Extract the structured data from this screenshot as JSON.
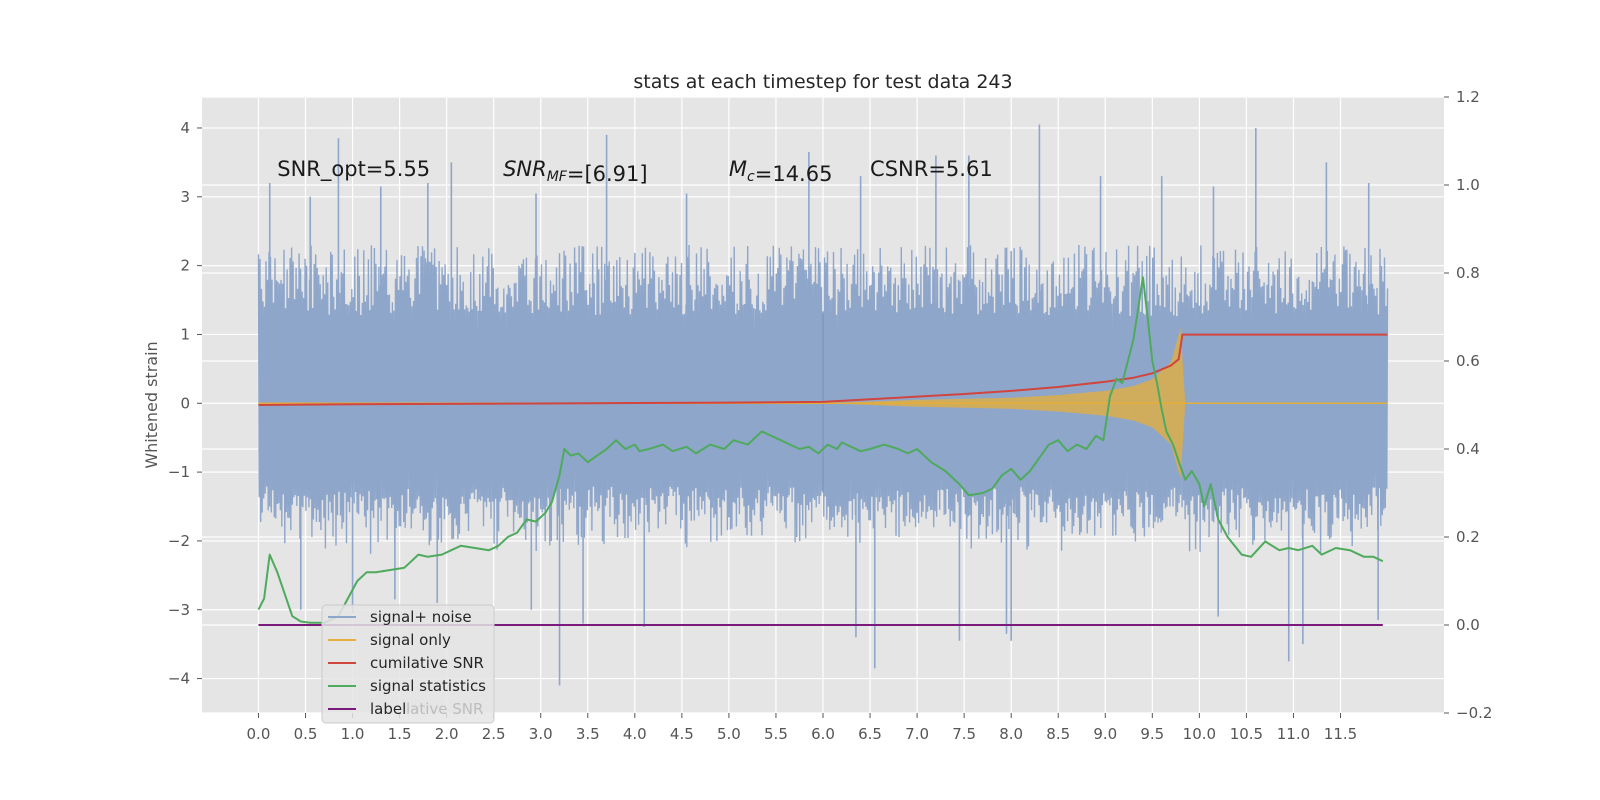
{
  "chart_data": {
    "type": "line",
    "title": "stats at each timestep for test data 243",
    "xlabel": "",
    "ylabel": "Whitened strain",
    "xlim": [
      -0.6,
      12.6
    ],
    "ylim": [
      -4.5,
      4.45
    ],
    "y2lim": [
      -0.2,
      1.2
    ],
    "x_ticks": [
      0.0,
      0.5,
      1.0,
      1.5,
      2.0,
      2.5,
      3.0,
      3.5,
      4.0,
      4.5,
      5.0,
      5.5,
      6.0,
      6.5,
      7.0,
      7.5,
      8.0,
      8.5,
      9.0,
      9.5,
      10.0,
      10.5,
      11.0,
      11.5
    ],
    "x_tick_labels": [
      "0.0",
      "0.5",
      "1.0",
      "1.5",
      "2.0",
      "2.5",
      "3.0",
      "3.5",
      "4.0",
      "4.5",
      "5.0",
      "5.5",
      "6.0",
      "6.5",
      "7.0",
      "7.5",
      "8.0",
      "8.5",
      "9.0",
      "9.5",
      "10.0",
      "10.5",
      "11.0",
      "11.5"
    ],
    "y_ticks": [
      -4,
      -3,
      -2,
      -1,
      0,
      1,
      2,
      3,
      4
    ],
    "y_tick_labels": [
      "−4",
      "−3",
      "−2",
      "−1",
      "0",
      "1",
      "2",
      "3",
      "4"
    ],
    "y2_ticks": [
      -0.2,
      0.0,
      0.2,
      0.4,
      0.6,
      0.8,
      1.0,
      1.2
    ],
    "y2_tick_labels": [
      "−0.2",
      "0.0",
      "0.2",
      "0.4",
      "0.6",
      "0.8",
      "1.0",
      "1.2"
    ],
    "grid": true,
    "legend_placement": "lower-left",
    "annotations": [
      {
        "parts": [
          {
            "t": "SNR_opt=5.55",
            "italic": false
          }
        ],
        "x": 0.2,
        "y": 3.3
      },
      {
        "parts": [
          {
            "t": "SNR",
            "italic": true
          },
          {
            "t": "MF",
            "italic": true,
            "sub": true
          },
          {
            "t": "=[6.91]",
            "italic": false
          }
        ],
        "x": 2.6,
        "y": 3.3
      },
      {
        "parts": [
          {
            "t": "M",
            "italic": true
          },
          {
            "t": "c",
            "italic": true,
            "sub": true
          },
          {
            "t": "=14.65",
            "italic": false
          }
        ],
        "x": 5.0,
        "y": 3.3
      },
      {
        "parts": [
          {
            "t": "CSNR=5.61",
            "italic": false
          }
        ],
        "x": 6.5,
        "y": 3.3
      }
    ],
    "series": [
      {
        "name": "signal+ noise",
        "axis": "left",
        "color": "#8fa6cb",
        "kind": "noise",
        "x_range": [
          0.0,
          12.0
        ],
        "typical_range": [
          -2.2,
          2.3
        ],
        "spikes": [
          [
            0.12,
            3.2
          ],
          [
            0.55,
            3.0
          ],
          [
            0.85,
            3.85
          ],
          [
            1.3,
            3.15
          ],
          [
            1.8,
            3.2
          ],
          [
            2.05,
            3.5
          ],
          [
            2.95,
            3.05
          ],
          [
            3.7,
            3.9
          ],
          [
            4.55,
            3.05
          ],
          [
            5.85,
            3.65
          ],
          [
            6.4,
            3.3
          ],
          [
            7.2,
            3.6
          ],
          [
            7.55,
            3.6
          ],
          [
            8.3,
            4.05
          ],
          [
            8.95,
            3.3
          ],
          [
            9.6,
            3.3
          ],
          [
            10.15,
            3.15
          ],
          [
            10.6,
            4.0
          ],
          [
            11.35,
            3.5
          ],
          [
            11.8,
            3.2
          ],
          [
            0.45,
            -3.0
          ],
          [
            1.0,
            -3.05
          ],
          [
            1.45,
            -2.85
          ],
          [
            1.9,
            -2.9
          ],
          [
            2.9,
            -3.0
          ],
          [
            3.2,
            -4.1
          ],
          [
            3.45,
            -3.2
          ],
          [
            4.1,
            -3.25
          ],
          [
            6.35,
            -3.4
          ],
          [
            6.55,
            -3.85
          ],
          [
            7.45,
            -3.45
          ],
          [
            7.95,
            -3.35
          ],
          [
            8.0,
            -3.45
          ],
          [
            10.2,
            -3.1
          ],
          [
            10.95,
            -3.75
          ],
          [
            11.1,
            -3.5
          ],
          [
            11.9,
            -3.15
          ]
        ]
      },
      {
        "name": "signal only",
        "axis": "left",
        "color": "#e5ae38",
        "kind": "chirp",
        "x": [
          0.0,
          6.0,
          7.0,
          8.0,
          8.5,
          9.0,
          9.3,
          9.5,
          9.7,
          9.8,
          9.85,
          12.0
        ],
        "envelope": [
          0.0,
          0.0,
          0.05,
          0.08,
          0.12,
          0.18,
          0.25,
          0.35,
          0.6,
          1.1,
          0.0,
          0.0
        ]
      },
      {
        "name": "cumilative SNR",
        "axis": "right",
        "color": "#d0453e",
        "x": [
          0.0,
          1.0,
          2.0,
          3.0,
          4.0,
          5.0,
          6.0,
          6.5,
          7.0,
          7.5,
          8.0,
          8.5,
          9.0,
          9.3,
          9.5,
          9.7,
          9.78,
          9.82,
          12.0
        ],
        "y": [
          0.5,
          0.5015,
          0.5025,
          0.5035,
          0.5045,
          0.5055,
          0.507,
          0.513,
          0.519,
          0.525,
          0.532,
          0.541,
          0.553,
          0.562,
          0.572,
          0.59,
          0.604,
          0.66,
          0.66
        ]
      },
      {
        "name": "signal statistics",
        "axis": "right",
        "color": "#4eaa5c",
        "x": [
          0.0,
          0.06,
          0.12,
          0.2,
          0.28,
          0.36,
          0.45,
          0.55,
          0.7,
          0.85,
          0.95,
          1.05,
          1.15,
          1.25,
          1.4,
          1.55,
          1.7,
          1.8,
          1.95,
          2.05,
          2.15,
          2.3,
          2.45,
          2.55,
          2.65,
          2.75,
          2.85,
          2.95,
          3.05,
          3.12,
          3.2,
          3.25,
          3.32,
          3.4,
          3.5,
          3.6,
          3.7,
          3.8,
          3.85,
          3.9,
          4.0,
          4.05,
          4.15,
          4.3,
          4.4,
          4.55,
          4.65,
          4.8,
          4.95,
          5.05,
          5.2,
          5.35,
          5.45,
          5.55,
          5.65,
          5.75,
          5.85,
          5.95,
          6.05,
          6.15,
          6.2,
          6.3,
          6.4,
          6.5,
          6.65,
          6.8,
          6.9,
          7.0,
          7.15,
          7.3,
          7.45,
          7.55,
          7.7,
          7.8,
          7.9,
          8.0,
          8.1,
          8.2,
          8.3,
          8.4,
          8.5,
          8.6,
          8.7,
          8.8,
          8.9,
          8.98,
          9.05,
          9.12,
          9.18,
          9.24,
          9.3,
          9.35,
          9.4,
          9.45,
          9.5,
          9.55,
          9.6,
          9.65,
          9.72,
          9.8,
          9.85,
          9.92,
          10.0,
          10.05,
          10.12,
          10.2,
          10.3,
          10.45,
          10.55,
          10.7,
          10.85,
          10.95,
          11.05,
          11.2,
          11.3,
          11.45,
          11.6,
          11.75,
          11.85,
          11.95
        ],
        "y": [
          0.035,
          0.06,
          0.16,
          0.12,
          0.07,
          0.02,
          0.008,
          0.005,
          0.005,
          0.02,
          0.06,
          0.1,
          0.12,
          0.12,
          0.125,
          0.13,
          0.16,
          0.155,
          0.16,
          0.17,
          0.18,
          0.175,
          0.17,
          0.18,
          0.2,
          0.21,
          0.24,
          0.235,
          0.255,
          0.28,
          0.34,
          0.4,
          0.385,
          0.39,
          0.37,
          0.385,
          0.4,
          0.42,
          0.41,
          0.4,
          0.41,
          0.395,
          0.4,
          0.41,
          0.395,
          0.405,
          0.39,
          0.41,
          0.4,
          0.42,
          0.41,
          0.44,
          0.43,
          0.42,
          0.41,
          0.4,
          0.405,
          0.39,
          0.41,
          0.4,
          0.415,
          0.405,
          0.395,
          0.4,
          0.41,
          0.4,
          0.39,
          0.4,
          0.37,
          0.35,
          0.32,
          0.295,
          0.3,
          0.31,
          0.34,
          0.355,
          0.33,
          0.35,
          0.38,
          0.41,
          0.42,
          0.395,
          0.41,
          0.4,
          0.43,
          0.42,
          0.52,
          0.56,
          0.55,
          0.6,
          0.65,
          0.72,
          0.79,
          0.7,
          0.6,
          0.55,
          0.49,
          0.44,
          0.41,
          0.36,
          0.33,
          0.35,
          0.32,
          0.27,
          0.32,
          0.24,
          0.2,
          0.16,
          0.155,
          0.19,
          0.17,
          0.175,
          0.17,
          0.18,
          0.16,
          0.175,
          0.17,
          0.155,
          0.155,
          0.145
        ]
      },
      {
        "name": "label",
        "axis": "right",
        "color": "#7b1a7d",
        "x": [
          0.0,
          11.95
        ],
        "y": [
          0.0,
          0.0
        ]
      }
    ]
  },
  "legend_ghost_text": "lative SNR",
  "colors": {
    "plot_bg": "#e5e5e5",
    "grid": "#ffffff",
    "tick": "#555555",
    "legend_bg": "#e5e5e5",
    "legend_border": "#cccccc"
  }
}
